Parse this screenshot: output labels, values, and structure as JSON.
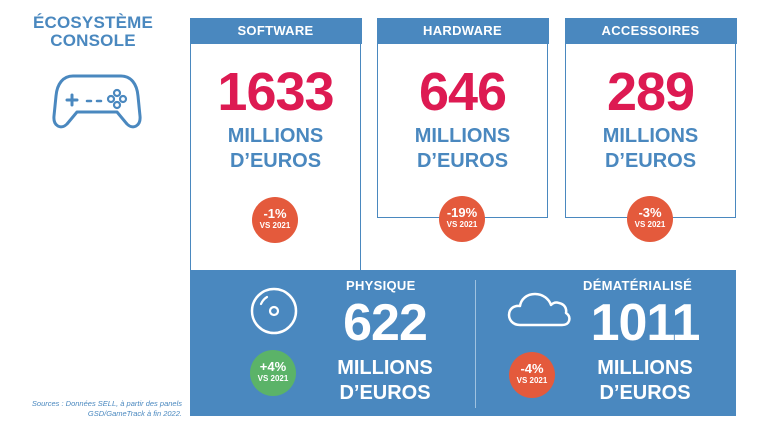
{
  "title": {
    "line1": "ÉCOSYSTÈME",
    "line2": "CONSOLE"
  },
  "icons": {
    "gamepad": "gamepad-icon",
    "disc": "disc-icon",
    "cloud": "cloud-icon"
  },
  "colors": {
    "blue": "#4a88bf",
    "magenta": "#dd1a52",
    "red": "#e45a3c",
    "green": "#5bb368"
  },
  "cards": [
    {
      "label": "SOFTWARE",
      "value": "1633",
      "unit1": "MILLIONS",
      "unit2": "D’EUROS",
      "change": "-1%",
      "vs": "VS 2021"
    },
    {
      "label": "HARDWARE",
      "value": "646",
      "unit1": "MILLIONS",
      "unit2": "D’EUROS",
      "change": "-19%",
      "vs": "VS 2021"
    },
    {
      "label": "ACCESSOIRES",
      "value": "289",
      "unit1": "MILLIONS",
      "unit2": "D’EUROS",
      "change": "-3%",
      "vs": "VS 2021"
    }
  ],
  "physique": {
    "label": "PHYSIQUE",
    "value": "622",
    "unit1": "MILLIONS",
    "unit2": "D’EUROS",
    "change": "+4%",
    "vs": "VS 2021"
  },
  "dematerialise": {
    "label": "DÉMATÉRIALISÉ",
    "value": "1011",
    "unit1": "MILLIONS",
    "unit2": "D’EUROS",
    "change": "-4%",
    "vs": "VS 2021"
  },
  "sources": {
    "line1": "Sources : Données SELL, à partir des panels",
    "line2": "GSD/GameTrack à fin 2022."
  }
}
